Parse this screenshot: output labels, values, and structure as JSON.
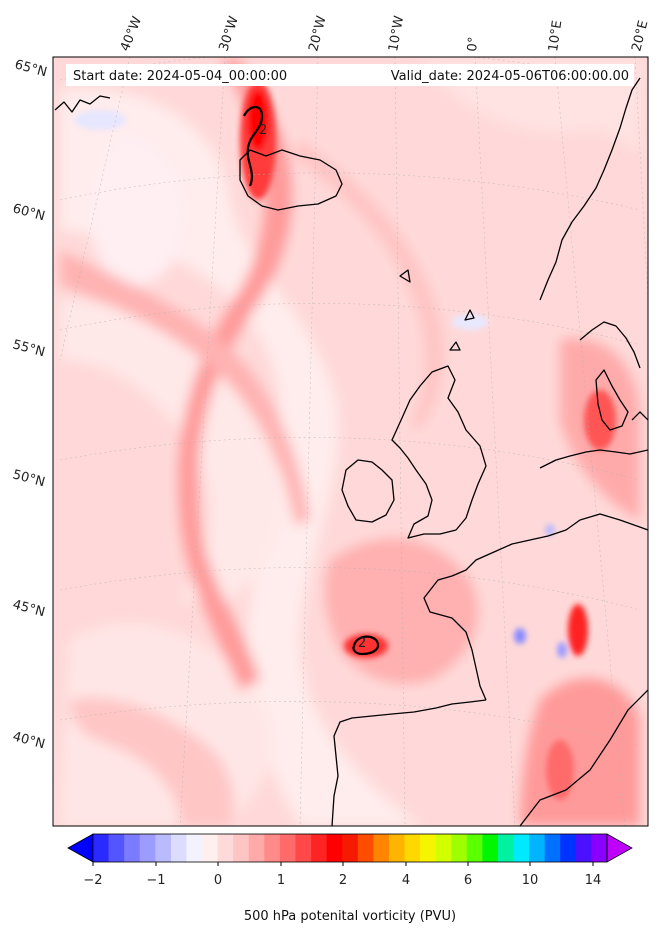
{
  "header": {
    "start_date": "Start date: 2024-05-04_00:00:00",
    "valid_date": "Valid_date: 2024-05-06T06:00:00.00"
  },
  "map": {
    "top_ticks": [
      "40°W",
      "30°W",
      "20°W",
      "10°W",
      "0°",
      "10°E",
      "20°E"
    ],
    "left_ticks": [
      "65°N",
      "60°N",
      "55°N",
      "50°N",
      "45°N",
      "40°N"
    ],
    "contour_label": "2",
    "contour_label_2": "2"
  },
  "colorbar": {
    "tick_labels": [
      "−2",
      "−1",
      "0",
      "1",
      "2",
      "4",
      "6",
      "10",
      "14"
    ],
    "label": "500 hPa potenital vorticity (PVU)",
    "colors": [
      "#0000ff",
      "#2a2aff",
      "#5555ff",
      "#7b7bff",
      "#9c9cff",
      "#babaff",
      "#dcdcff",
      "#f3f3ff",
      "#ffefef",
      "#ffdada",
      "#ffc4c4",
      "#ffaaaa",
      "#ff8a8a",
      "#ff6a6a",
      "#ff4848",
      "#ff2424",
      "#ff0000",
      "#f51a00",
      "#ff4d00",
      "#ff8400",
      "#ffb400",
      "#ffd800",
      "#f7f400",
      "#d2ff00",
      "#9dff00",
      "#5aff00",
      "#00f500",
      "#00f2a0",
      "#00eaff",
      "#00b4ff",
      "#0070ff",
      "#0033ff",
      "#4a10ff",
      "#8a00ff",
      "#c000ff"
    ]
  }
}
